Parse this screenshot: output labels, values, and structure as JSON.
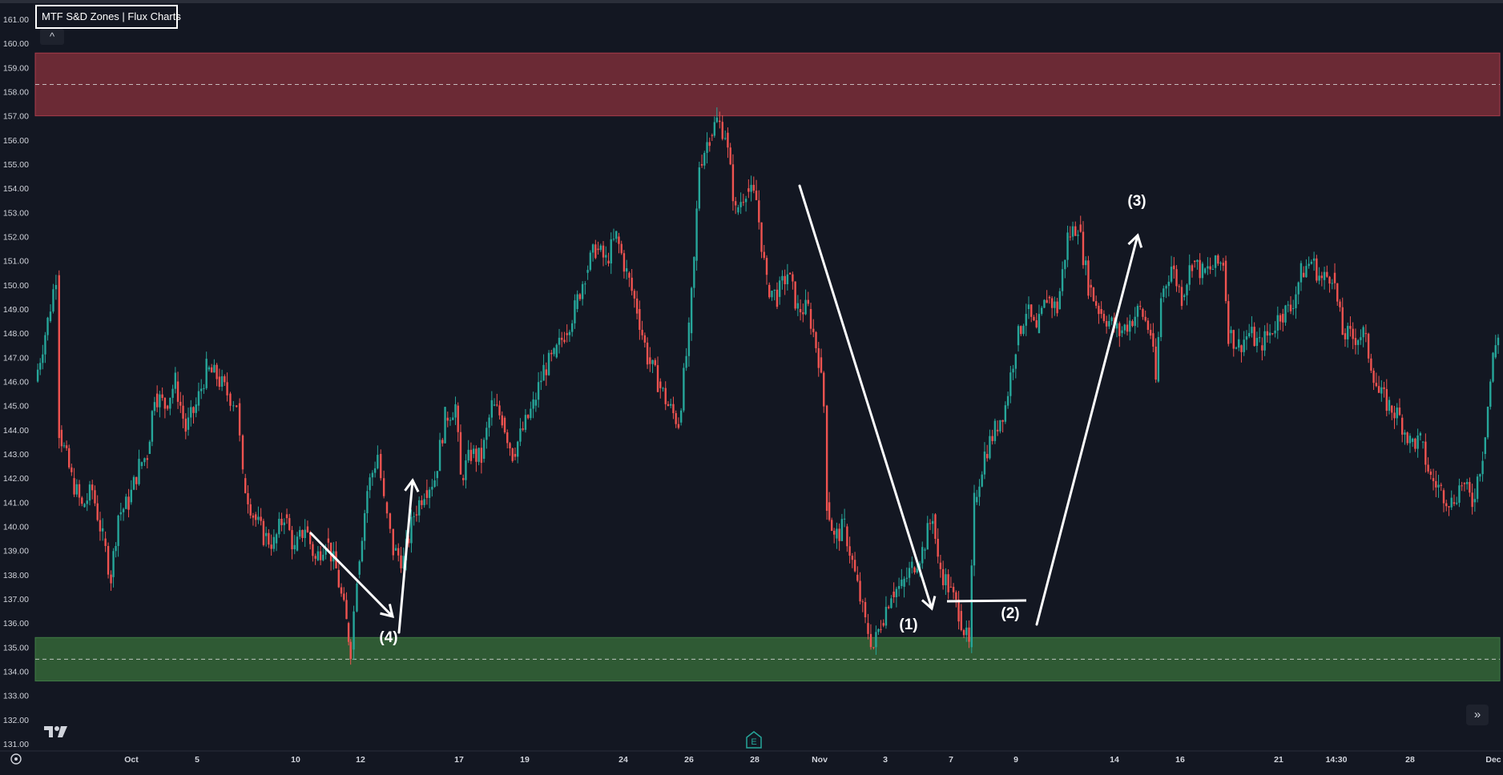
{
  "indicator": {
    "title": "MTF S&D Zones | Flux Charts",
    "collapse_glyph": "^"
  },
  "icons": {
    "logo": "tradingview-logo-icon",
    "earnings": "earnings-e-icon",
    "scroll": "double-chevron-right-icon",
    "settings": "gear-icon",
    "collapse": "chevron-up-icon"
  },
  "colors": {
    "background": "#131722",
    "up": "#26a69a",
    "down": "#ef5350",
    "supply_zone": "#6b2a35",
    "demand_zone": "#2f5a34",
    "annotation": "#ffffff",
    "axis_text": "#d1d4dc"
  },
  "chart_data": {
    "type": "candlestick",
    "title": "MTF S&D Zones | Flux Charts",
    "y_axis": {
      "position": "left",
      "ticks": [
        "161.00",
        "160.00",
        "159.00",
        "158.00",
        "157.00",
        "156.00",
        "155.00",
        "154.00",
        "153.00",
        "152.00",
        "151.00",
        "150.00",
        "149.00",
        "148.00",
        "147.00",
        "146.00",
        "145.00",
        "144.00",
        "143.00",
        "142.00",
        "141.00",
        "140.00",
        "139.00",
        "138.00",
        "137.00",
        "136.00",
        "135.00",
        "134.00",
        "133.00",
        "132.00",
        "131.00"
      ],
      "ylim": [
        131,
        161
      ]
    },
    "x_axis": {
      "ticks": [
        "Oct",
        "5",
        "10",
        "12",
        "17",
        "19",
        "24",
        "26",
        "28",
        "Nov",
        "3",
        "7",
        "9",
        "14",
        "16",
        "21",
        "14:30",
        "28",
        "Dec"
      ]
    },
    "zones": [
      {
        "type": "supply",
        "top": 159.6,
        "bottom": 157.0,
        "mid": 158.3
      },
      {
        "type": "demand",
        "top": 135.4,
        "bottom": 133.6,
        "mid": 134.5
      }
    ],
    "annotations": [
      "(1)",
      "(2)",
      "(3)",
      "(4)"
    ],
    "price_path": [
      [
        0.0,
        146.0
      ],
      [
        1.2,
        148.5
      ],
      [
        2.0,
        150.4
      ],
      [
        2.3,
        144.0
      ],
      [
        3.5,
        142.0
      ],
      [
        4.5,
        140.8
      ],
      [
        5.5,
        141.5
      ],
      [
        6.5,
        139.5
      ],
      [
        7.3,
        137.9
      ],
      [
        8.0,
        140.5
      ],
      [
        9.0,
        141.0
      ],
      [
        10.0,
        142.5
      ],
      [
        10.8,
        143.0
      ],
      [
        11.5,
        145.5
      ],
      [
        12.5,
        145.0
      ],
      [
        13.5,
        146.0
      ],
      [
        14.5,
        144.0
      ],
      [
        15.5,
        145.0
      ],
      [
        16.5,
        146.5
      ],
      [
        17.5,
        146.2
      ],
      [
        18.5,
        145.5
      ],
      [
        19.4,
        145.1
      ],
      [
        20.0,
        142.0
      ],
      [
        21.0,
        140.5
      ],
      [
        22.0,
        139.6
      ],
      [
        23.0,
        139.3
      ],
      [
        24.0,
        140.5
      ],
      [
        25.0,
        139.0
      ],
      [
        26.0,
        140.0
      ],
      [
        27.0,
        138.6
      ],
      [
        28.0,
        139.5
      ],
      [
        29.0,
        138.2
      ],
      [
        30.0,
        136.0
      ],
      [
        30.4,
        134.9
      ],
      [
        31.0,
        138.0
      ],
      [
        32.0,
        141.5
      ],
      [
        33.0,
        143.0
      ],
      [
        33.6,
        141.0
      ],
      [
        34.5,
        139.0
      ],
      [
        35.5,
        138.6
      ],
      [
        36.5,
        140.5
      ],
      [
        37.5,
        141.5
      ],
      [
        38.5,
        142.0
      ],
      [
        39.5,
        144.5
      ],
      [
        40.5,
        145.0
      ],
      [
        41.0,
        142.0
      ],
      [
        42.0,
        143.0
      ],
      [
        43.0,
        142.8
      ],
      [
        44.0,
        145.0
      ],
      [
        45.0,
        144.5
      ],
      [
        46.0,
        143.0
      ],
      [
        47.0,
        144.0
      ],
      [
        48.0,
        145.0
      ],
      [
        49.0,
        146.5
      ],
      [
        50.0,
        147.0
      ],
      [
        51.0,
        148.0
      ],
      [
        52.0,
        149.0
      ],
      [
        53.0,
        150.5
      ],
      [
        54.0,
        151.5
      ],
      [
        55.0,
        151.0
      ],
      [
        56.0,
        152.0
      ],
      [
        57.0,
        150.5
      ],
      [
        58.0,
        149.0
      ],
      [
        59.0,
        147.0
      ],
      [
        60.0,
        146.0
      ],
      [
        61.0,
        145.0
      ],
      [
        62.0,
        144.3
      ],
      [
        63.0,
        148.0
      ],
      [
        63.5,
        151.0
      ],
      [
        64.0,
        155.0
      ],
      [
        65.0,
        156.2
      ],
      [
        65.7,
        156.8
      ],
      [
        66.5,
        156.3
      ],
      [
        67.5,
        153.0
      ],
      [
        68.5,
        154.0
      ],
      [
        69.5,
        153.5
      ],
      [
        70.5,
        150.0
      ],
      [
        71.5,
        149.5
      ],
      [
        72.5,
        150.5
      ],
      [
        73.5,
        149.0
      ],
      [
        74.5,
        149.0
      ],
      [
        75.5,
        147.0
      ],
      [
        76.0,
        145.0
      ],
      [
        76.3,
        141.0
      ],
      [
        77.0,
        139.5
      ],
      [
        78.0,
        140.0
      ],
      [
        79.0,
        138.0
      ],
      [
        80.0,
        136.0
      ],
      [
        80.8,
        135.0
      ],
      [
        81.5,
        136.0
      ],
      [
        82.5,
        137.3
      ],
      [
        83.5,
        137.5
      ],
      [
        84.5,
        138.3
      ],
      [
        85.5,
        139.0
      ],
      [
        86.5,
        140.5
      ],
      [
        87.0,
        138.5
      ],
      [
        88.0,
        137.5
      ],
      [
        89.0,
        136.5
      ],
      [
        90.0,
        135.0
      ],
      [
        90.5,
        141.0
      ],
      [
        91.5,
        143.0
      ],
      [
        92.5,
        144.0
      ],
      [
        93.5,
        145.0
      ],
      [
        94.5,
        147.5
      ],
      [
        95.5,
        149.0
      ],
      [
        96.5,
        148.0
      ],
      [
        97.5,
        149.5
      ],
      [
        98.5,
        149.0
      ],
      [
        99.5,
        152.0
      ],
      [
        100.5,
        152.5
      ],
      [
        101.5,
        150.0
      ],
      [
        102.5,
        149.0
      ],
      [
        103.5,
        148.5
      ],
      [
        104.5,
        148.0
      ],
      [
        105.5,
        148.5
      ],
      [
        106.5,
        149.0
      ],
      [
        107.5,
        148.0
      ],
      [
        108.0,
        146.0
      ],
      [
        108.5,
        149.5
      ],
      [
        109.5,
        150.8
      ],
      [
        110.5,
        149.5
      ],
      [
        111.5,
        151.0
      ],
      [
        112.5,
        150.5
      ],
      [
        113.5,
        150.7
      ],
      [
        114.5,
        151.0
      ],
      [
        115.0,
        148.0
      ],
      [
        116.0,
        147.5
      ],
      [
        117.0,
        148.0
      ],
      [
        118.0,
        147.5
      ],
      [
        119.0,
        148.0
      ],
      [
        120.0,
        148.8
      ],
      [
        121.0,
        149.0
      ],
      [
        122.0,
        150.5
      ],
      [
        123.0,
        151.0
      ],
      [
        124.0,
        150.2
      ],
      [
        125.0,
        150.5
      ],
      [
        126.0,
        148.0
      ],
      [
        127.0,
        147.8
      ],
      [
        128.0,
        148.0
      ],
      [
        129.5,
        145.5
      ],
      [
        130.5,
        145.0
      ],
      [
        131.5,
        144.5
      ],
      [
        132.5,
        143.5
      ],
      [
        133.5,
        143.5
      ],
      [
        134.5,
        142.0
      ],
      [
        135.5,
        141.5
      ],
      [
        136.5,
        141.0
      ],
      [
        137.5,
        141.8
      ],
      [
        138.5,
        141.0
      ],
      [
        139.5,
        143.0
      ],
      [
        140.5,
        147.0
      ],
      [
        141.0,
        148.0
      ]
    ]
  }
}
